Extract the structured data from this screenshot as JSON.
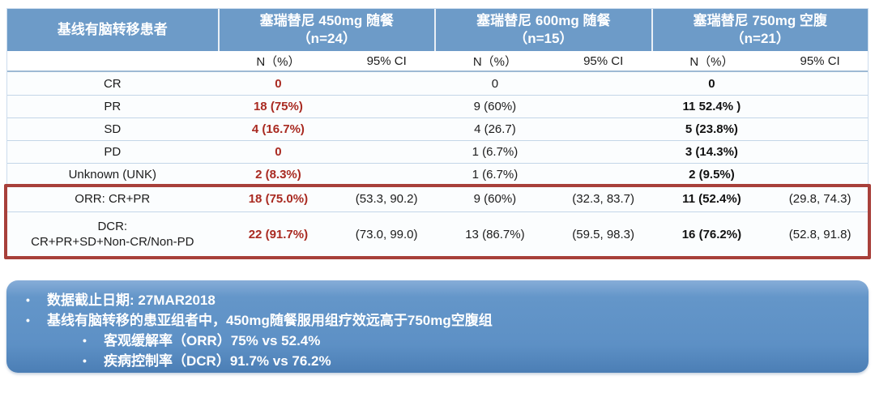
{
  "colors": {
    "header_blue": "#6d9bc8",
    "accent_red": "#a92a21",
    "highlight_border_red": "#a8403a",
    "notes_box_blue": "#5d90c5"
  },
  "table": {
    "corner_label": "基线有脑转移患者",
    "groups": [
      {
        "title": "塞瑞替尼 450mg 随餐",
        "n": "（n=24）"
      },
      {
        "title": "塞瑞替尼 600mg 随餐",
        "n": "（n=15）"
      },
      {
        "title": "塞瑞替尼 750mg 空腹",
        "n": "（n=21）"
      }
    ],
    "subheader": {
      "n_pct": "N（%）",
      "ci": "95% CI"
    },
    "rows": [
      {
        "label": "CR",
        "g1": "0",
        "g1ci": "",
        "g2": "0",
        "g2ci": "",
        "g3": "0",
        "g3ci": ""
      },
      {
        "label": "PR",
        "g1": "18 (75%)",
        "g1ci": "",
        "g2": "9 (60%)",
        "g2ci": "",
        "g3": "11 52.4% )",
        "g3ci": ""
      },
      {
        "label": "SD",
        "g1": "4 (16.7%)",
        "g1ci": "",
        "g2": "4 (26.7)",
        "g2ci": "",
        "g3": "5 (23.8%)",
        "g3ci": ""
      },
      {
        "label": "PD",
        "g1": "0",
        "g1ci": "",
        "g2": "1 (6.7%)",
        "g2ci": "",
        "g3": "3 (14.3%)",
        "g3ci": ""
      },
      {
        "label": "Unknown (UNK)",
        "g1": "2 (8.3%)",
        "g1ci": "",
        "g2": "1 (6.7%)",
        "g2ci": "",
        "g3": "2 (9.5%)",
        "g3ci": ""
      }
    ],
    "highlight_rows": [
      {
        "label": "ORR: CR+PR",
        "g1": "18 (75.0%)",
        "g1ci": "(53.3, 90.2)",
        "g2": "9 (60%)",
        "g2ci": "(32.3, 83.7)",
        "g3": "11 (52.4%)",
        "g3ci": "(29.8, 74.3)"
      },
      {
        "label_line1": "DCR:",
        "label_line2": "CR+PR+SD+Non-CR/Non-PD",
        "g1": "22 (91.7%)",
        "g1ci": "(73.0, 99.0)",
        "g2": "13 (86.7%)",
        "g2ci": "(59.5, 98.3)",
        "g3": "16 (76.2%)",
        "g3ci": "(52.8, 91.8)"
      }
    ]
  },
  "notes": {
    "bullet_glyph": "•",
    "bullets": [
      "数据截止日期: 27MAR2018",
      "基线有脑转移的患亚组者中，450mg随餐服用组疗效远高于750mg空腹组"
    ],
    "sub_bullets": [
      "客观缓解率（ORR）75% vs 52.4%",
      "疾病控制率（DCR）91.7% vs 76.2%"
    ]
  }
}
